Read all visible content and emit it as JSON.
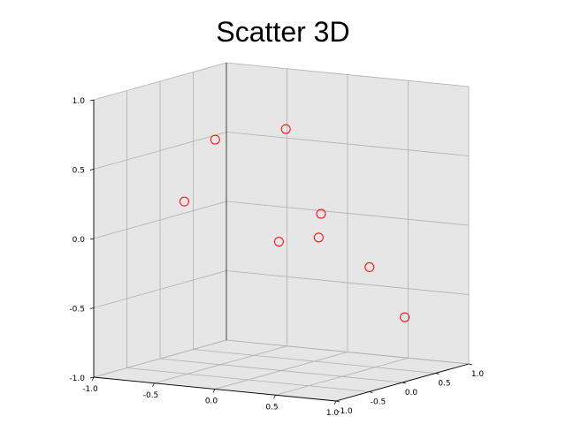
{
  "chart_data": {
    "type": "scatter",
    "title": "Scatter 3D",
    "xlabel": "",
    "ylabel": "",
    "zlabel": "",
    "xlim": [
      -1.0,
      1.0
    ],
    "ylim": [
      -1.0,
      1.0
    ],
    "zlim": [
      -1.0,
      1.0
    ],
    "grid": true,
    "marker_color": "#ff0000",
    "pane_color": "#e6e6e6",
    "x_ticks": [
      "-1.0",
      "-0.5",
      "0.0",
      "0.5",
      "1.0"
    ],
    "y_ticks": [
      "-1.0",
      "-0.5",
      "0.0",
      "0.5",
      "1.0"
    ],
    "z_ticks": [
      "-1.0",
      "-0.5",
      "0.0",
      "0.5",
      "1.0"
    ],
    "points": [
      {
        "x": -0.6,
        "y": 0.1,
        "z": 0.6
      },
      {
        "x": -0.4,
        "y": 0.8,
        "z": 0.6
      },
      {
        "x": -0.8,
        "y": 0.0,
        "z": 0.15
      },
      {
        "x": 0.0,
        "y": 0.6,
        "z": 0.05
      },
      {
        "x": 0.2,
        "y": 0.2,
        "z": -0.05
      },
      {
        "x": 0.2,
        "y": -0.4,
        "z": 0.0
      },
      {
        "x": 0.4,
        "y": 0.6,
        "z": -0.3
      },
      {
        "x": 0.8,
        "y": 0.4,
        "z": -0.6
      }
    ]
  }
}
